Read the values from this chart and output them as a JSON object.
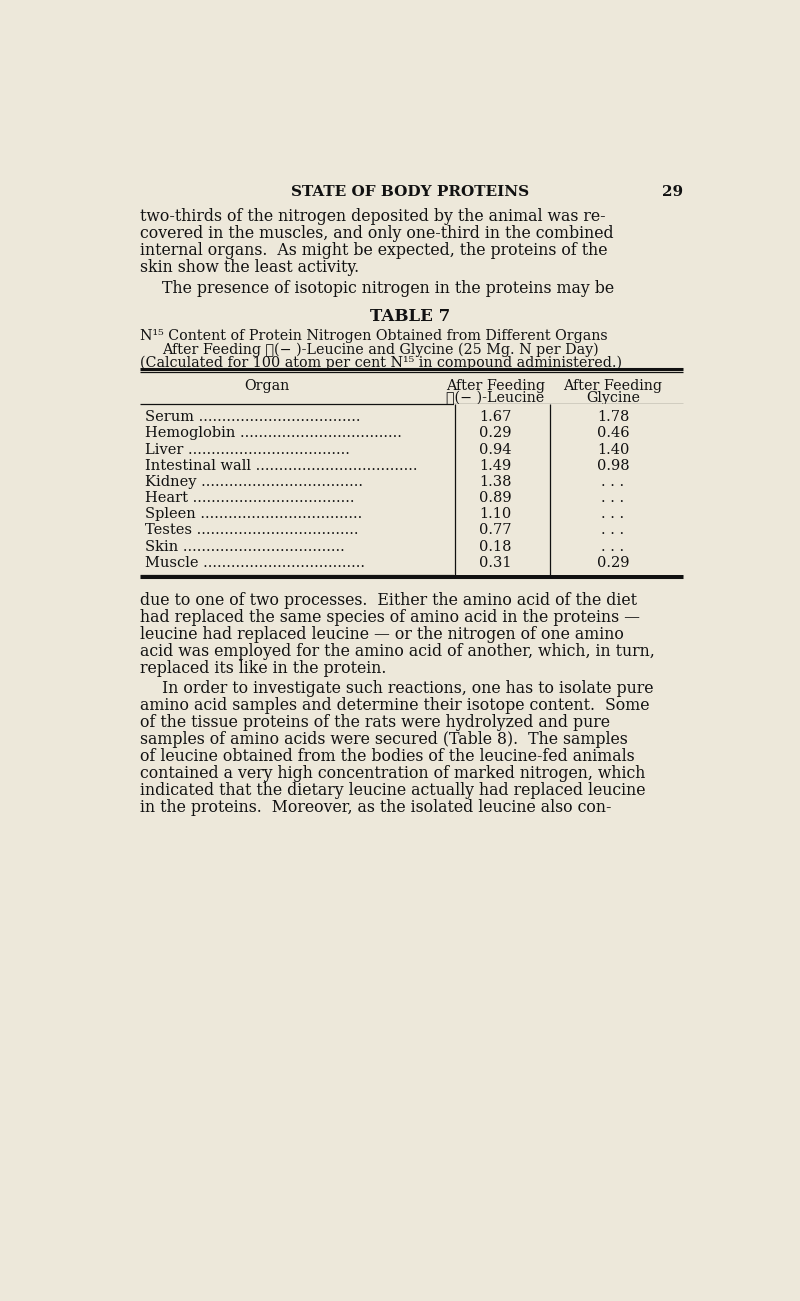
{
  "background_color": "#ede8da",
  "text_color": "#111111",
  "header_title": "STATE OF BODY PROTEINS",
  "header_page": "29",
  "para1_lines": [
    "two-thirds of the nitrogen deposited by the animal was re-",
    "covered in the muscles, and only one-third in the combined",
    "internal organs.  As might be expected, the proteins of the",
    "skin show the least activity."
  ],
  "para1_indent_line": "The presence of isotopic nitrogen in the proteins may be",
  "table_title": "TABLE 7",
  "caption_line1": "N¹⁵ Content of Protein Nitrogen Obtained from Different Organs",
  "caption_line2": "After Feeding ℓ(− )-Leucine and Glycine (25 Mg. N per Day)",
  "caption_line3": "(Calculated for 100 atom per cent N¹⁵ in compound administered.)",
  "col_header1": "Organ",
  "col_header2a": "After Feeding",
  "col_header2b": "ℓ(− )-Leucine",
  "col_header3a": "After Feeding",
  "col_header3b": "Glycine",
  "table_rows": [
    [
      "Serum",
      "1.67",
      "1.78"
    ],
    [
      "Hemoglobin",
      "0.29",
      "0.46"
    ],
    [
      "Liver",
      "0.94",
      "1.40"
    ],
    [
      "Intestinal wall",
      "1.49",
      "0.98"
    ],
    [
      "Kidney",
      "1.38",
      ". . ."
    ],
    [
      "Heart",
      "0.89",
      ". . ."
    ],
    [
      "Spleen",
      "1.10",
      ". . ."
    ],
    [
      "Testes",
      "0.77",
      ". . ."
    ],
    [
      "Skin",
      "0.18",
      ". . ."
    ],
    [
      "Muscle",
      "0.31",
      "0.29"
    ]
  ],
  "para2_lines": [
    "due to one of two processes.  Either the amino acid of the diet",
    "had replaced the same species of amino acid in the proteins —",
    "leucine had replaced leucine — or the nitrogen of one amino",
    "acid was employed for the amino acid of another, which, in turn,",
    "replaced its like in the protein."
  ],
  "para3_lines": [
    "In order to investigate such reactions, one has to isolate pure",
    "amino acid samples and determine their isotope content.  Some",
    "of the tissue proteins of the rats were hydrolyzed and pure",
    "samples of amino acids were secured (Table 8).  The samples",
    "of leucine obtained from the bodies of the leucine-fed animals",
    "contained a very high concentration of marked nitrogen, which",
    "indicated that the dietary leucine actually had replaced leucine",
    "in the proteins.  Moreover, as the isolated leucine also con-"
  ]
}
